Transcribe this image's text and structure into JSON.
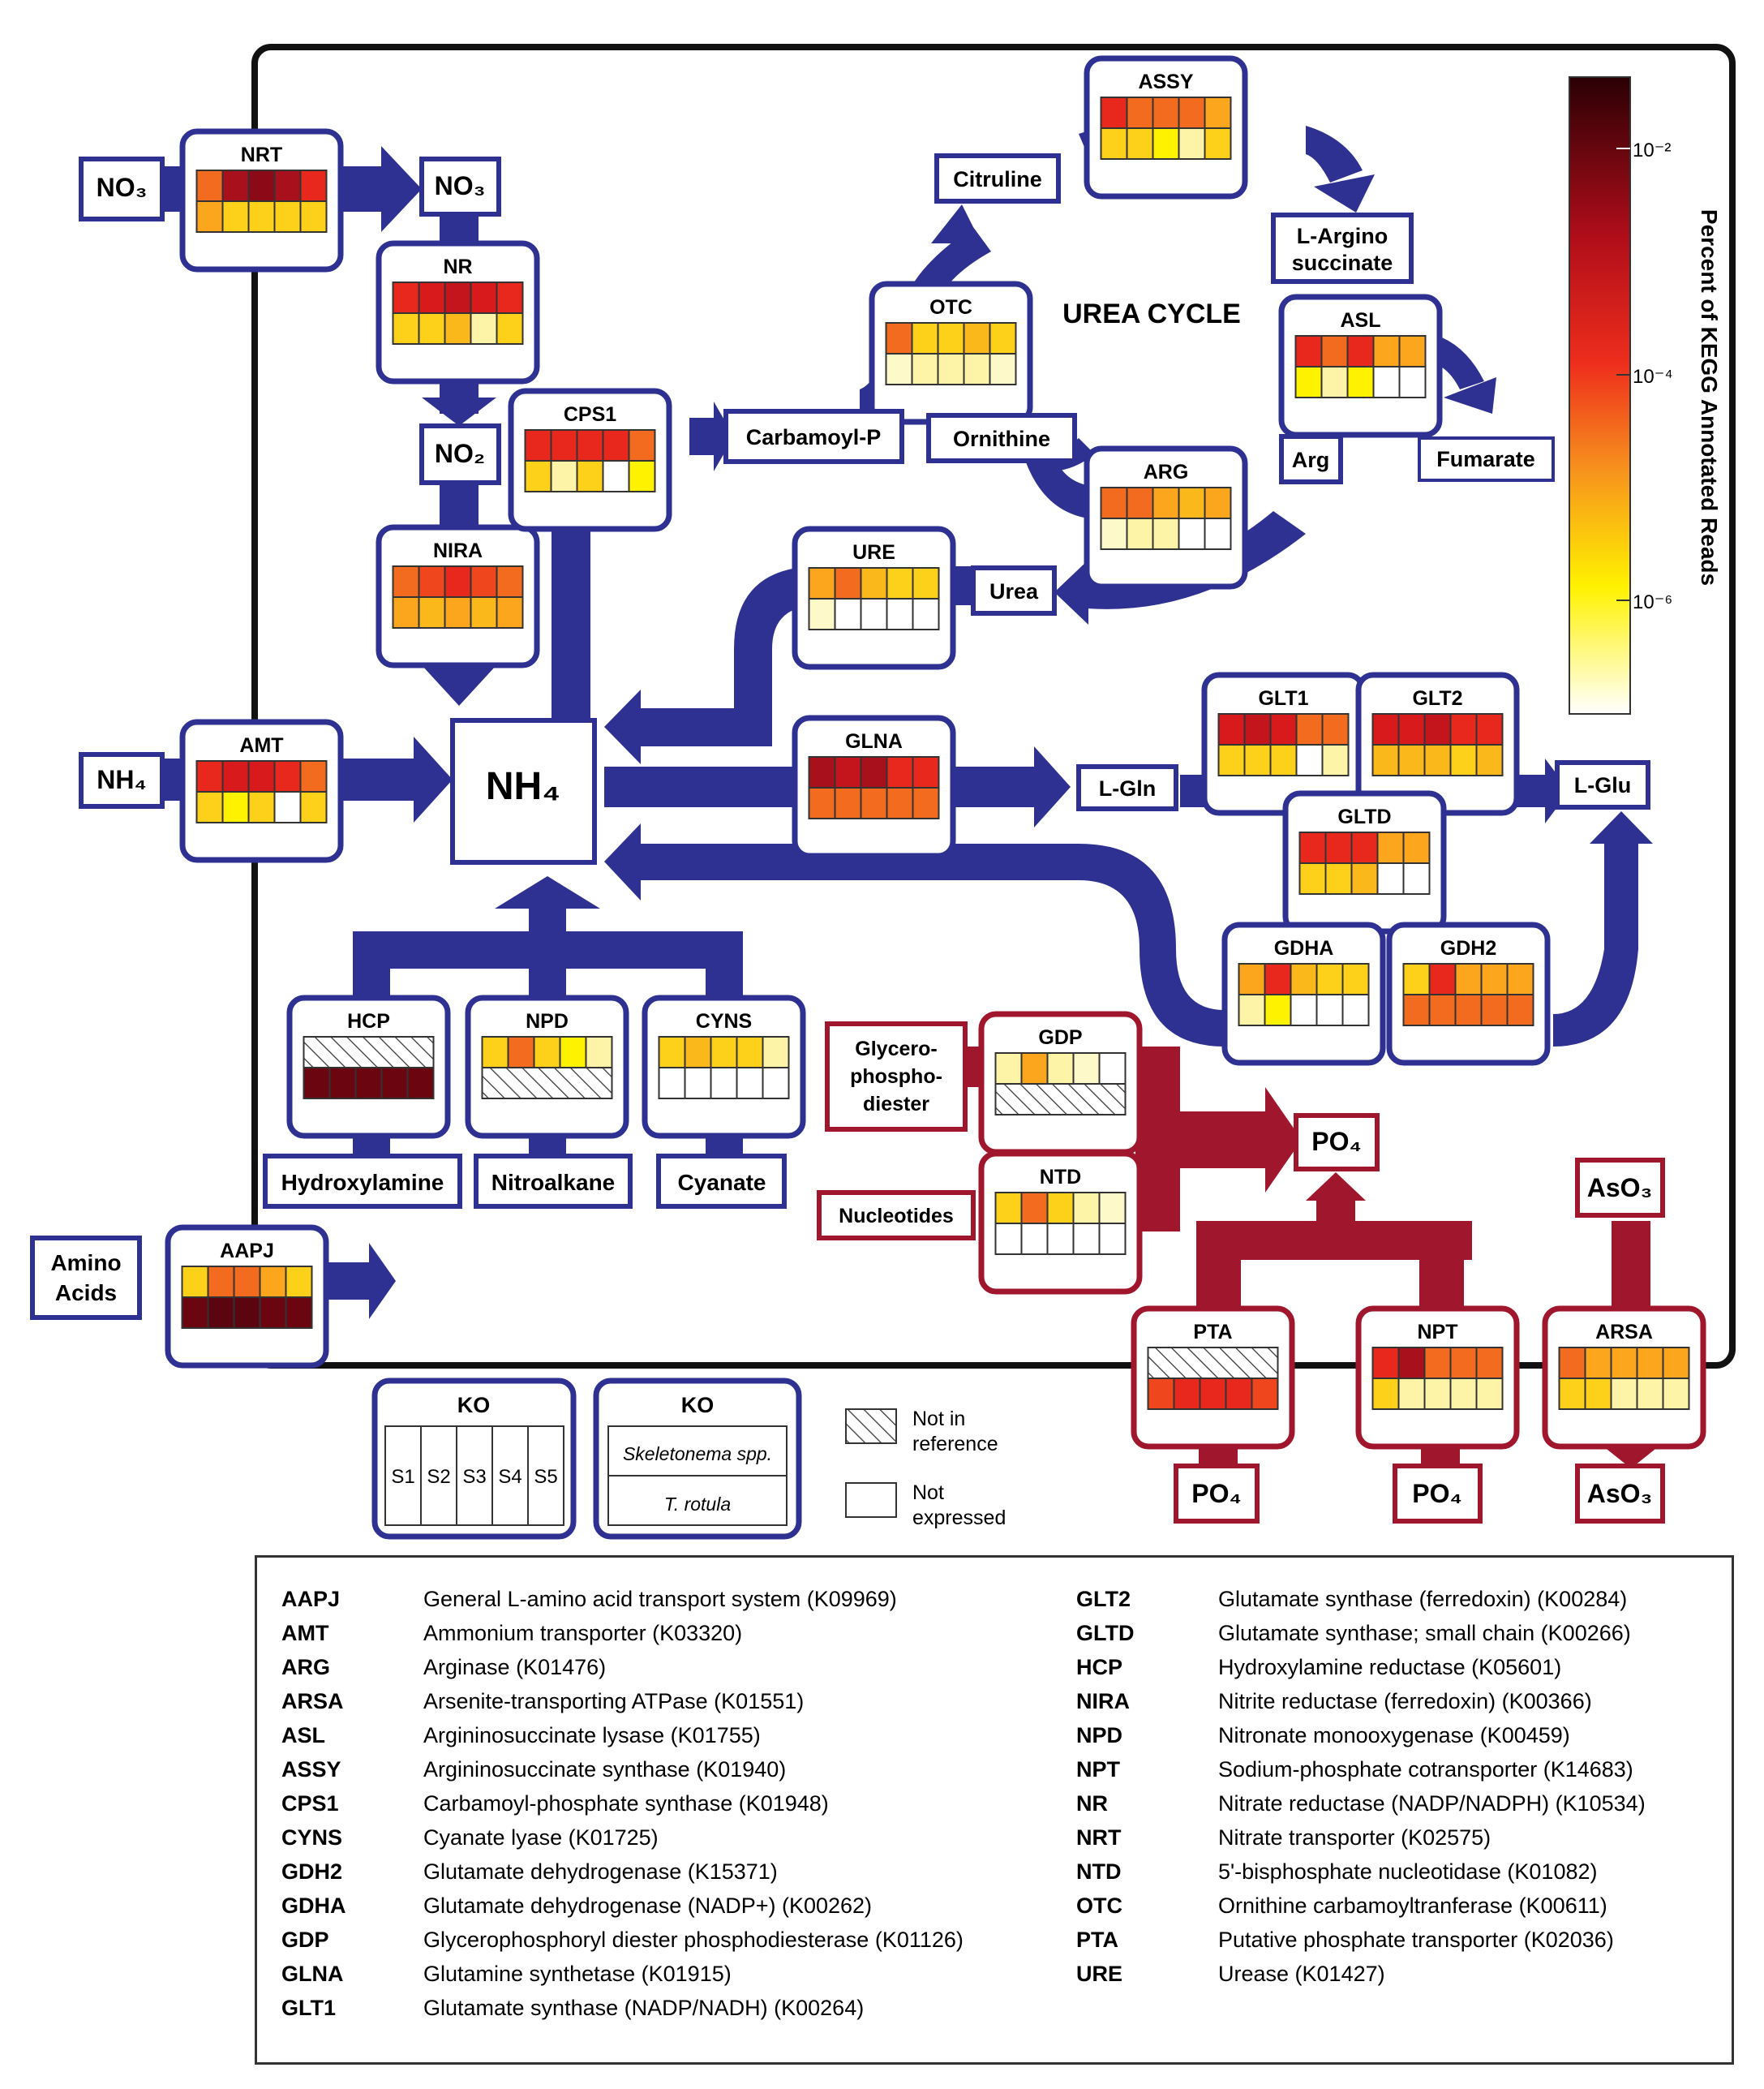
{
  "title": "",
  "colors": {
    "blue": "#2e3191",
    "red": "#a0162d"
  },
  "colorbar": {
    "label": "Percent of KEGG Annotated Reads",
    "ticks": [
      "10⁻²",
      "10⁻⁴",
      "10⁻⁶"
    ]
  },
  "metabolites": {
    "no3_in": "NO₃",
    "no3": "NO₃",
    "no2": "NO₂",
    "nh4_in": "NH₄",
    "nh4": "NH₄",
    "amino_acids_1": "Amino",
    "amino_acids_2": "Acids",
    "citruline": "Citruline",
    "argino_1": "L-Argino",
    "argino_2": "succinate",
    "carbamoyl_p": "Carbamoyl-P",
    "ornithine": "Ornithine",
    "arg": "Arg",
    "fumarate": "Fumarate",
    "urea": "Urea",
    "urea_cycle": "UREA CYCLE",
    "lgln": "L-Gln",
    "lglu": "L-Glu",
    "hydroxylamine": "Hydroxylamine",
    "nitroalkane": "Nitroalkane",
    "cyanate": "Cyanate",
    "glycero_1": "Glycero-",
    "glycero_2": "phospho-",
    "glycero_3": "diester",
    "nucleotides": "Nucleotides",
    "po4": "PO₄",
    "po4_b1": "PO₄",
    "po4_b2": "PO₄",
    "aso3_in": "AsO₃",
    "aso3_out": "AsO₃"
  },
  "enzymes": [
    {
      "id": "NRT",
      "color": "blue",
      "top": [
        "#f26b1e",
        "#a8101c",
        "#8c0a18",
        "#a8101c",
        "#e8281d"
      ],
      "bot": [
        "#fba61c",
        "#fdd11a",
        "#fdd11a",
        "#fdd11a",
        "#fdd11a"
      ]
    },
    {
      "id": "NR",
      "color": "blue",
      "top": [
        "#e8281d",
        "#d91a1d",
        "#c4141c",
        "#d91a1d",
        "#e8281d"
      ],
      "bot": [
        "#fdd11a",
        "#fdd11a",
        "#fbb81b",
        "#fef4a8",
        "#fdd11a"
      ]
    },
    {
      "id": "NIRA",
      "color": "blue",
      "top": [
        "#f26b1e",
        "#f0461d",
        "#e8281d",
        "#f0461d",
        "#f26b1e"
      ],
      "bot": [
        "#fba61c",
        "#fbb81b",
        "#fba61c",
        "#fbb81b",
        "#fba61c"
      ]
    },
    {
      "id": "CPS1",
      "color": "blue",
      "top": [
        "#e8281d",
        "#e8281d",
        "#e8281d",
        "#e8281d",
        "#f26b1e"
      ],
      "bot": [
        "#fdd11a",
        "#fef4a8",
        "#fdd11a",
        "#ffffff",
        "#fff200"
      ]
    },
    {
      "id": "AMT",
      "color": "blue",
      "top": [
        "#e8281d",
        "#d91a1d",
        "#d91a1d",
        "#e8281d",
        "#f26b1e"
      ],
      "bot": [
        "#fdd11a",
        "#fff200",
        "#fdd11a",
        "#ffffff",
        "#fdd11a"
      ]
    },
    {
      "id": "AAPJ",
      "color": "blue",
      "top": [
        "#fdd11a",
        "#f26b1e",
        "#f26b1e",
        "#fba61c",
        "#fdd11a"
      ],
      "bot": [
        "#6b0610",
        "#5a0510",
        "#5a0510",
        "#6b0610",
        "#6b0610"
      ]
    },
    {
      "id": "OTC",
      "color": "blue",
      "top": [
        "#f26b1e",
        "#fdd11a",
        "#fdd11a",
        "#fbb81b",
        "#fdd11a"
      ],
      "bot": [
        "#fef9c8",
        "#fef4a8",
        "#fef4a8",
        "#fef4a8",
        "#fef9c8"
      ]
    },
    {
      "id": "ASSY",
      "color": "blue",
      "top": [
        "#e8281d",
        "#f26b1e",
        "#f26b1e",
        "#f26b1e",
        "#fba61c"
      ],
      "bot": [
        "#fdd11a",
        "#fdd11a",
        "#fff200",
        "#fef4a8",
        "#fdd11a"
      ]
    },
    {
      "id": "ASL",
      "color": "blue",
      "top": [
        "#e8281d",
        "#f26b1e",
        "#e8281d",
        "#fba61c",
        "#fba61c"
      ],
      "bot": [
        "#fff200",
        "#fef4a8",
        "#fff200",
        "#ffffff",
        "#ffffff"
      ]
    },
    {
      "id": "ARG",
      "color": "blue",
      "top": [
        "#f26b1e",
        "#f26b1e",
        "#fba61c",
        "#fbb81b",
        "#fba61c"
      ],
      "bot": [
        "#fef9c8",
        "#fef4a8",
        "#fef4a8",
        "#ffffff",
        "#ffffff"
      ]
    },
    {
      "id": "URE",
      "color": "blue",
      "top": [
        "#fba61c",
        "#f26b1e",
        "#fbb81b",
        "#fdd11a",
        "#fdd11a"
      ],
      "bot": [
        "#fef9c8",
        "#ffffff",
        "#ffffff",
        "#ffffff",
        "#ffffff"
      ]
    },
    {
      "id": "GLNA",
      "color": "blue",
      "top": [
        "#a8101c",
        "#c4141c",
        "#a8101c",
        "#e8281d",
        "#e8281d"
      ],
      "bot": [
        "#f26b1e",
        "#f26b1e",
        "#f26b1e",
        "#f26b1e",
        "#f26b1e"
      ]
    },
    {
      "id": "GLT1",
      "color": "blue",
      "top": [
        "#d91a1d",
        "#c4141c",
        "#d91a1d",
        "#f26b1e",
        "#f26b1e"
      ],
      "bot": [
        "#fdd11a",
        "#fdd11a",
        "#fdd11a",
        "#ffffff",
        "#fef4a8"
      ]
    },
    {
      "id": "GLT2",
      "color": "blue",
      "top": [
        "#d91a1d",
        "#d91a1d",
        "#c4141c",
        "#e8281d",
        "#e8281d"
      ],
      "bot": [
        "#fbb81b",
        "#fbb81b",
        "#fbb81b",
        "#fdd11a",
        "#fbb81b"
      ]
    },
    {
      "id": "GLTD",
      "color": "blue",
      "top": [
        "#e8281d",
        "#e8281d",
        "#e8281d",
        "#fba61c",
        "#fba61c"
      ],
      "bot": [
        "#fdd11a",
        "#fdd11a",
        "#fbb81b",
        "#ffffff",
        "#ffffff"
      ]
    },
    {
      "id": "GDHA",
      "color": "blue",
      "top": [
        "#fba61c",
        "#e8281d",
        "#fbb81b",
        "#fdd11a",
        "#fdd11a"
      ],
      "bot": [
        "#fef4a8",
        "#fff200",
        "#ffffff",
        "#ffffff",
        "#ffffff"
      ]
    },
    {
      "id": "GDH2",
      "color": "blue",
      "top": [
        "#fdd11a",
        "#e8281d",
        "#fba61c",
        "#fba61c",
        "#fba61c"
      ],
      "bot": [
        "#f26b1e",
        "#f26b1e",
        "#f26b1e",
        "#f26b1e",
        "#f26b1e"
      ]
    },
    {
      "id": "HCP",
      "color": "blue",
      "top": "hatch",
      "bot": [
        "#6b0610",
        "#6b0610",
        "#6b0610",
        "#6b0610",
        "#6b0610"
      ]
    },
    {
      "id": "NPD",
      "color": "blue",
      "top": [
        "#fdd11a",
        "#f26b1e",
        "#fdd11a",
        "#fff200",
        "#fef4a8"
      ],
      "bot": "hatch"
    },
    {
      "id": "CYNS",
      "color": "blue",
      "top": [
        "#fdd11a",
        "#fbb81b",
        "#fdd11a",
        "#fdd11a",
        "#fef4a8"
      ],
      "bot": [
        "#ffffff",
        "#ffffff",
        "#ffffff",
        "#ffffff",
        "#ffffff"
      ]
    },
    {
      "id": "GDP",
      "color": "red",
      "top": [
        "#fef4a8",
        "#fba61c",
        "#fef4a8",
        "#fef9c8",
        "#ffffff"
      ],
      "bot": "hatch"
    },
    {
      "id": "NTD",
      "color": "red",
      "top": [
        "#fdd11a",
        "#f26b1e",
        "#fdd11a",
        "#fef4a8",
        "#fef9c8"
      ],
      "bot": [
        "#ffffff",
        "#ffffff",
        "#ffffff",
        "#ffffff",
        "#ffffff"
      ]
    },
    {
      "id": "PTA",
      "color": "red",
      "top": "hatch",
      "bot": [
        "#f0461d",
        "#e8281d",
        "#e8281d",
        "#e8281d",
        "#f0461d"
      ]
    },
    {
      "id": "NPT",
      "color": "red",
      "top": [
        "#e8281d",
        "#a8101c",
        "#f26b1e",
        "#f26b1e",
        "#f26b1e"
      ],
      "bot": [
        "#fdd11a",
        "#fef4a8",
        "#fef4a8",
        "#fef4a8",
        "#fef4a8"
      ]
    },
    {
      "id": "ARSA",
      "color": "red",
      "top": [
        "#f26b1e",
        "#fba61c",
        "#fba61c",
        "#fba61c",
        "#fba61c"
      ],
      "bot": [
        "#fdd11a",
        "#fdd11a",
        "#fef4a8",
        "#fef4a8",
        "#fef4a8"
      ]
    }
  ],
  "key": {
    "title": "KO",
    "samples": [
      "S1",
      "S2",
      "S3",
      "S4",
      "S5"
    ],
    "species_top": "Skeletonema spp.",
    "species_bottom": "T. rotula",
    "not_in_reference_1": "Not in",
    "not_in_reference_2": "reference",
    "not_expressed_1": "Not",
    "not_expressed_2": "expressed"
  },
  "legend": {
    "left": [
      {
        "abbr": "AAPJ",
        "desc": "General L-amino acid transport system (K09969)"
      },
      {
        "abbr": "AMT",
        "desc": "Ammonium transporter (K03320)"
      },
      {
        "abbr": "ARG",
        "desc": "Arginase (K01476)"
      },
      {
        "abbr": "ARSA",
        "desc": "Arsenite-transporting ATPase (K01551)"
      },
      {
        "abbr": "ASL",
        "desc": "Argininosuccinate lysase (K01755)"
      },
      {
        "abbr": "ASSY",
        "desc": "Argininosuccinate synthase (K01940)"
      },
      {
        "abbr": "CPS1",
        "desc": "Carbamoyl-phosphate synthase (K01948)"
      },
      {
        "abbr": "CYNS",
        "desc": "Cyanate lyase (K01725)"
      },
      {
        "abbr": "GDH2",
        "desc": "Glutamate dehydrogenase (K15371)"
      },
      {
        "abbr": "GDHA",
        "desc": "Glutamate dehydrogenase (NADP+) (K00262)"
      },
      {
        "abbr": "GDP",
        "desc": "Glycerophosphoryl diester phosphodiesterase (K01126)"
      },
      {
        "abbr": "GLNA",
        "desc": "Glutamine synthetase (K01915)"
      },
      {
        "abbr": "GLT1",
        "desc": "Glutamate synthase (NADP/NADH) (K00264)"
      }
    ],
    "right": [
      {
        "abbr": "GLT2",
        "desc": "Glutamate synthase (ferredoxin) (K00284)"
      },
      {
        "abbr": "GLTD",
        "desc": "Glutamate synthase; small chain (K00266)"
      },
      {
        "abbr": "HCP",
        "desc": "Hydroxylamine reductase (K05601)"
      },
      {
        "abbr": "NIRA",
        "desc": "Nitrite reductase (ferredoxin) (K00366)"
      },
      {
        "abbr": "NPD",
        "desc": "Nitronate monooxygenase (K00459)"
      },
      {
        "abbr": "NPT",
        "desc": "Sodium-phosphate cotransporter (K14683)"
      },
      {
        "abbr": "NR",
        "desc": "Nitrate reductase (NADP/NADPH) (K10534)"
      },
      {
        "abbr": "NRT",
        "desc": "Nitrate transporter (K02575)"
      },
      {
        "abbr": "NTD",
        "desc": "5'-bisphosphate nucleotidase (K01082)"
      },
      {
        "abbr": "OTC",
        "desc": "Ornithine carbamoyltranferase (K00611)"
      },
      {
        "abbr": "PTA",
        "desc": "Putative phosphate transporter (K02036)"
      },
      {
        "abbr": "URE",
        "desc": "Urease (K01427)"
      }
    ]
  }
}
